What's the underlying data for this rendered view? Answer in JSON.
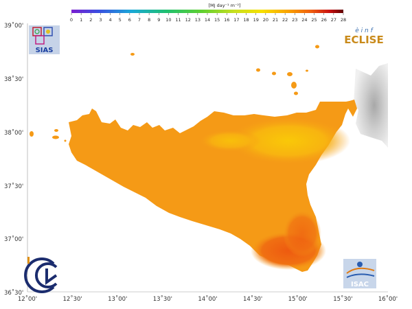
{
  "colorbar": {
    "unit": "[MJ day⁻¹ m⁻²]",
    "min": 0,
    "max": 28,
    "ticks": [
      "0",
      "1",
      "2",
      "3",
      "4",
      "5",
      "6",
      "7",
      "8",
      "9",
      "10",
      "11",
      "12",
      "13",
      "14",
      "15",
      "16",
      "17",
      "18",
      "19",
      "20",
      "21",
      "22",
      "23",
      "24",
      "25",
      "26",
      "27",
      "28"
    ],
    "stops": [
      "#7a1fd0",
      "#3a4fe0",
      "#1aa8d8",
      "#20c070",
      "#60d030",
      "#c8e020",
      "#f7e000",
      "#f9a000",
      "#f06010",
      "#c81010",
      "#600000"
    ]
  },
  "axes": {
    "lat_labels": [
      "39˚00'",
      "38˚30'",
      "38˚00'",
      "37˚30'",
      "37˚00'",
      "36˚30'"
    ],
    "lon_labels": [
      "12˚00'",
      "12˚30'",
      "13˚00'",
      "13˚30'",
      "14˚00'",
      "14˚30'",
      "15˚00'",
      "15˚30'",
      "16˚00'"
    ]
  },
  "logos": {
    "sias": "SIAS",
    "eclise": "ECLISE",
    "eclise_small": "è i n f",
    "isac": "ISAC"
  },
  "map_colors": {
    "land": "#f59a16",
    "land_high": "#f8c010",
    "land_south": "#f06a12",
    "terrain": "#d8d8d8"
  }
}
